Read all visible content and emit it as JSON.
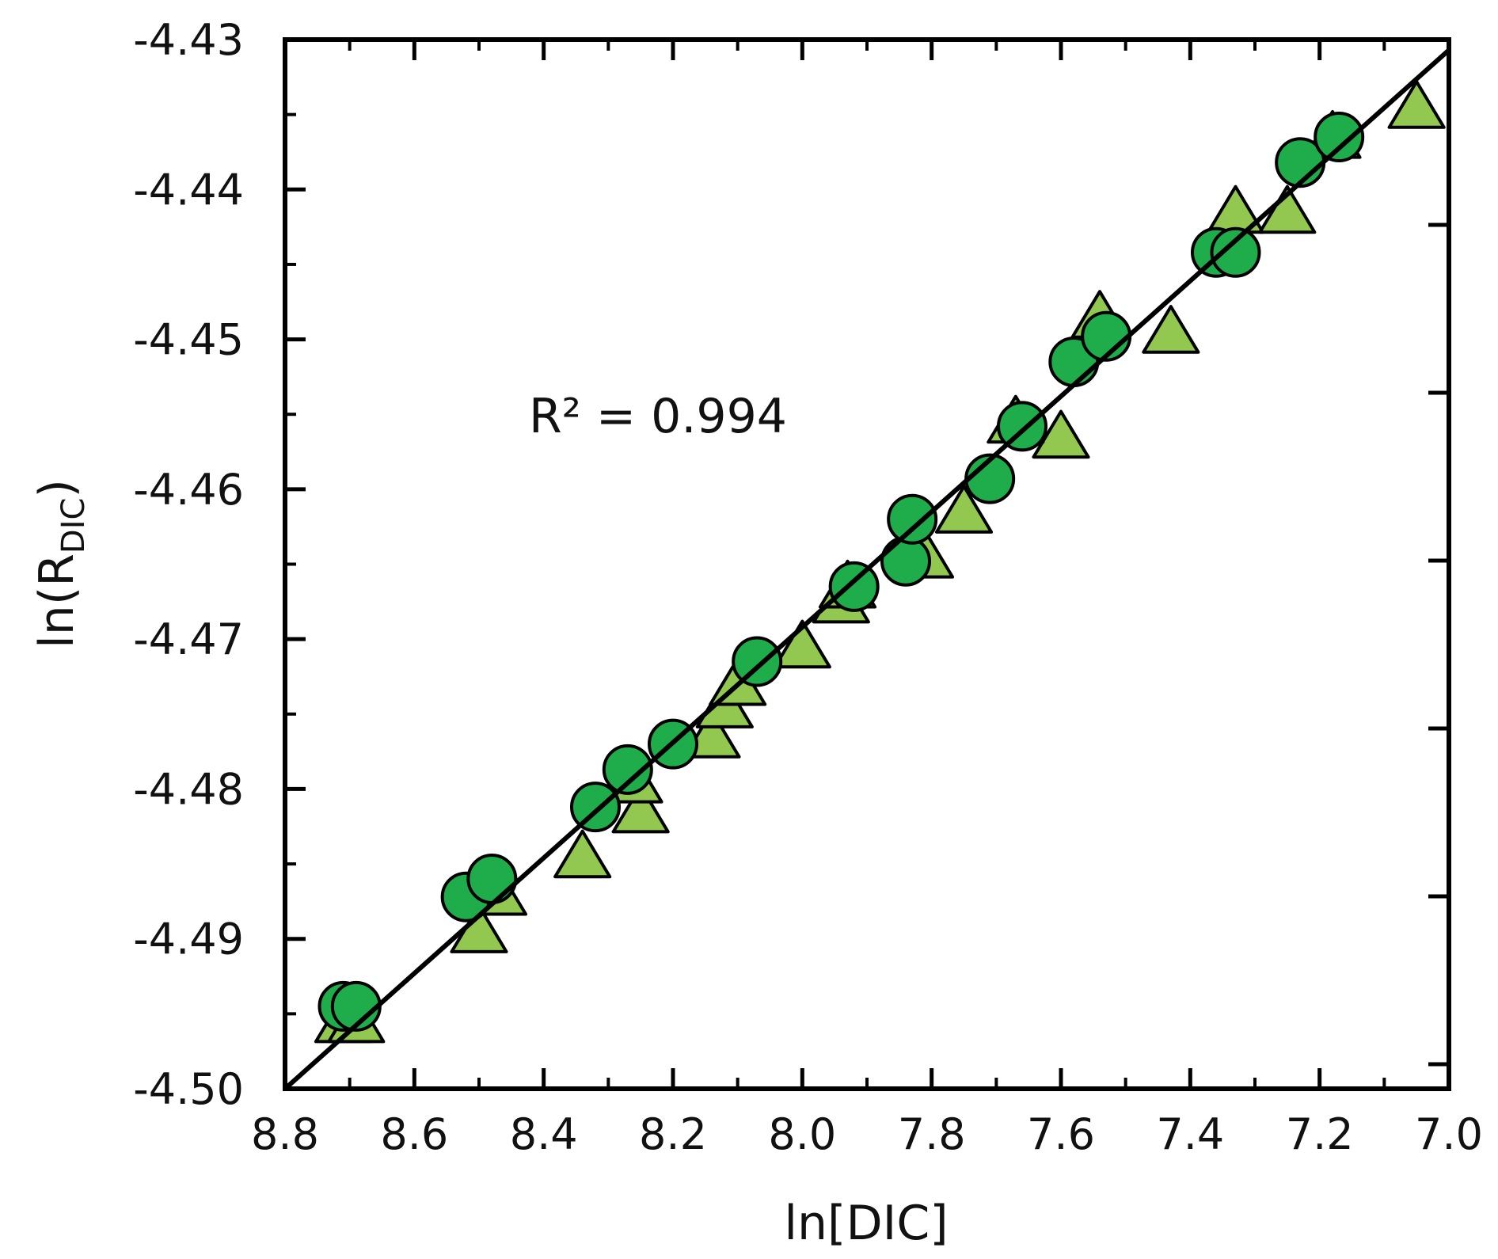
{
  "chart_data": {
    "type": "scatter",
    "xlabel": "ln[DIC]",
    "ylabel_main": "ln(R",
    "ylabel_sub": "DIC",
    "ylabel_end": ")",
    "xlim": [
      8.8,
      7.0
    ],
    "ylim": [
      -4.5,
      -4.43
    ],
    "x_reversed": true,
    "x_ticks": [
      "8.8",
      "8.6",
      "8.4",
      "8.2",
      "8.0",
      "7.8",
      "7.6",
      "7.4",
      "7.2",
      "7.0"
    ],
    "y_ticks": [
      "-4.50",
      "-4.49",
      "-4.48",
      "-4.47",
      "-4.46",
      "-4.45",
      "-4.44",
      "-4.43"
    ],
    "annotation": "R² = 0.994",
    "grid": false,
    "series": [
      {
        "marker": "triangle",
        "color": "#92c84f",
        "points": [
          [
            8.71,
            -4.4955
          ],
          [
            8.69,
            -4.4955
          ],
          [
            8.5,
            -4.4895
          ],
          [
            8.47,
            -4.487
          ],
          [
            8.34,
            -4.4845
          ],
          [
            8.25,
            -4.4815
          ],
          [
            8.26,
            -4.4795
          ],
          [
            8.14,
            -4.4765
          ],
          [
            8.12,
            -4.4745
          ],
          [
            8.1,
            -4.473
          ],
          [
            8.0,
            -4.4705
          ],
          [
            7.94,
            -4.4675
          ],
          [
            7.93,
            -4.4665
          ],
          [
            7.81,
            -4.4645
          ],
          [
            7.75,
            -4.4615
          ],
          [
            7.6,
            -4.4565
          ],
          [
            7.67,
            -4.4555
          ],
          [
            7.43,
            -4.4495
          ],
          [
            7.54,
            -4.4485
          ],
          [
            7.33,
            -4.4415
          ],
          [
            7.25,
            -4.4415
          ],
          [
            7.18,
            -4.4365
          ],
          [
            7.05,
            -4.4345
          ]
        ]
      },
      {
        "marker": "circle",
        "color": "#1fad4b",
        "points": [
          [
            8.71,
            -4.4945
          ],
          [
            8.69,
            -4.4945
          ],
          [
            8.52,
            -4.4872
          ],
          [
            8.48,
            -4.486
          ],
          [
            8.32,
            -4.4812
          ],
          [
            8.27,
            -4.4787
          ],
          [
            8.2,
            -4.477
          ],
          [
            8.07,
            -4.4715
          ],
          [
            7.92,
            -4.4665
          ],
          [
            7.84,
            -4.4648
          ],
          [
            7.83,
            -4.462
          ],
          [
            7.71,
            -4.4593
          ],
          [
            7.66,
            -4.4558
          ],
          [
            7.58,
            -4.4515
          ],
          [
            7.53,
            -4.4498
          ],
          [
            7.36,
            -4.4442
          ],
          [
            7.33,
            -4.4442
          ],
          [
            7.23,
            -4.4382
          ],
          [
            7.17,
            -4.4365
          ]
        ]
      }
    ],
    "fit_line": {
      "x": [
        8.8,
        7.0
      ],
      "y": [
        -4.5,
        -4.4307
      ]
    }
  }
}
